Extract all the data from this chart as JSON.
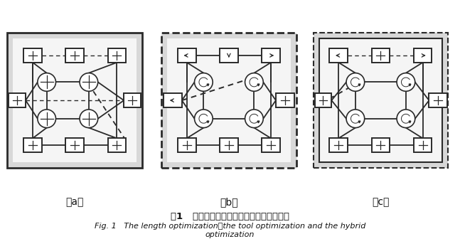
{
  "fig_width": 6.47,
  "fig_height": 3.36,
  "dpi": 100,
  "title_cn": "图1   长度优化法、刀具优化法和混合优化法",
  "title_en_line1": "Fig. 1   The length optimization，the tool optimization and the hybrid",
  "title_en_line2": "optimization",
  "panels": [
    "（a）",
    "（b）",
    "（c）"
  ],
  "lc": "#2a2a2a",
  "bg_light": "#d8d8d8",
  "bg_white": "#f5f5f5"
}
